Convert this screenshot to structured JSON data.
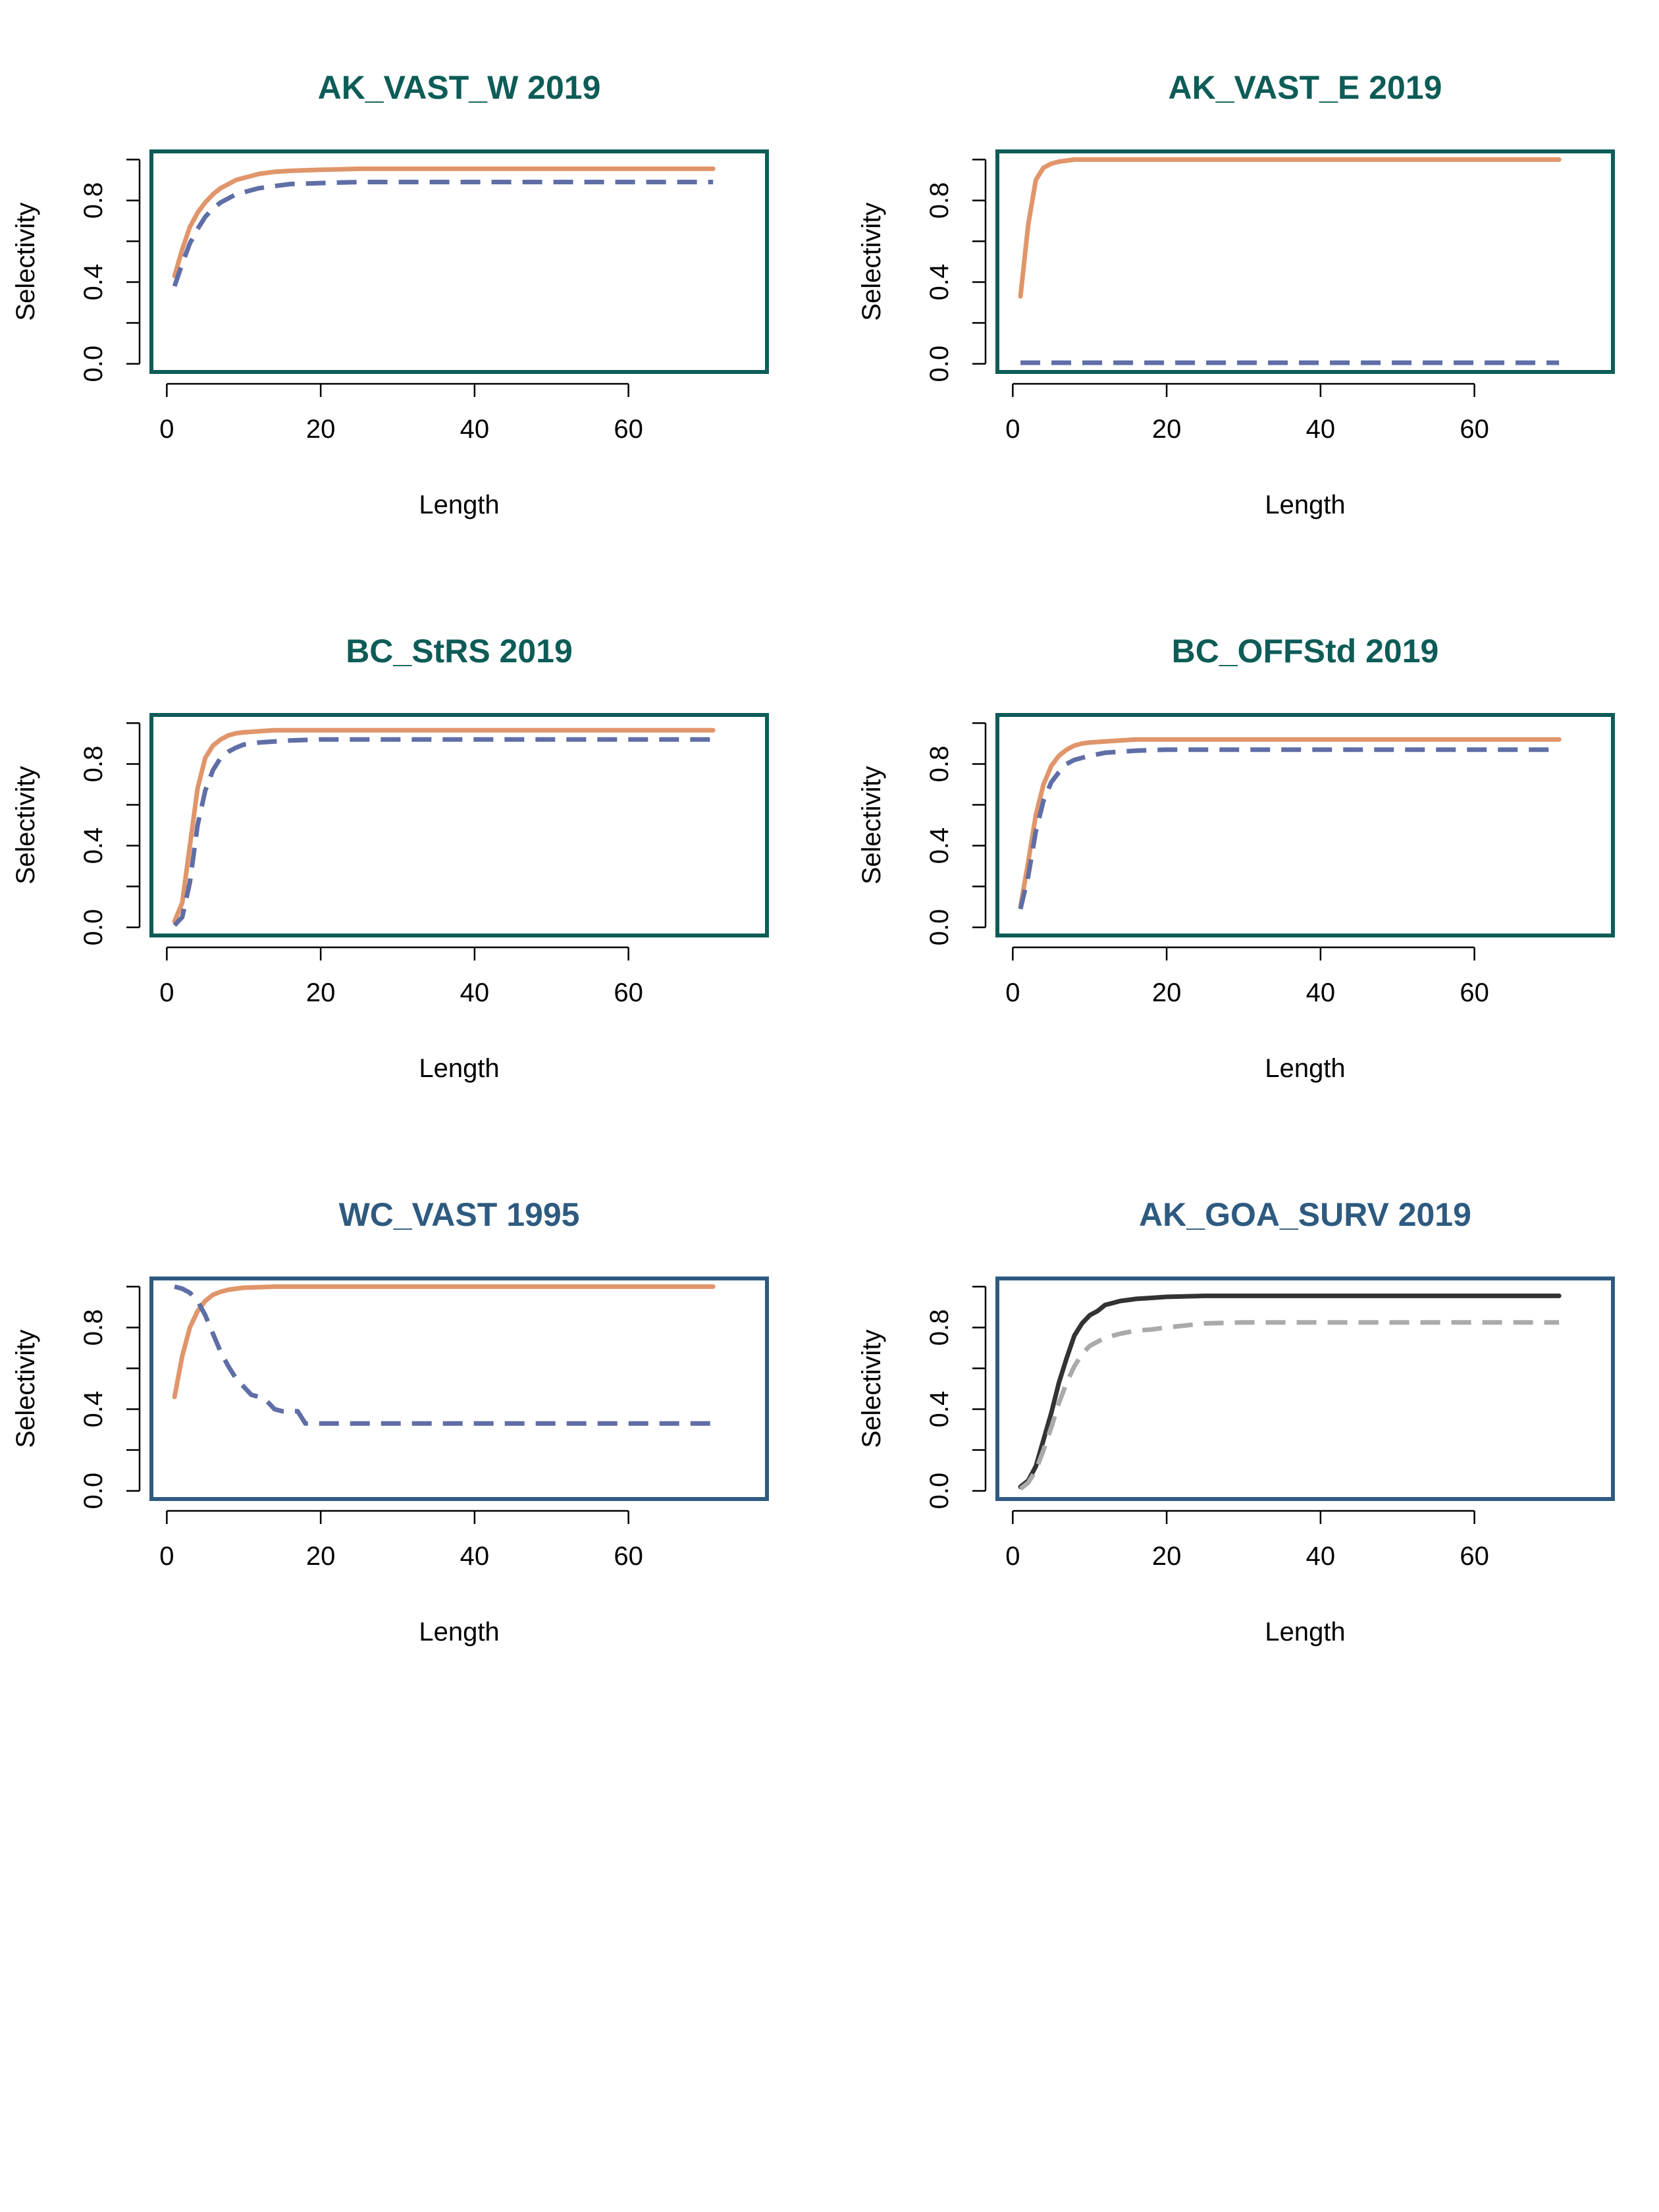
{
  "chart_data": [
    {
      "type": "line",
      "title": "AK_VAST_W 2019",
      "title_color": "#0d5c57",
      "frame_color": "#0d5c57",
      "xlabel": "Length",
      "ylabel": "Selectivity",
      "xlim": [
        -2,
        78
      ],
      "ylim": [
        -0.04,
        1.04
      ],
      "xticks": [
        0,
        20,
        40,
        60
      ],
      "yticks": [
        0.0,
        0.2,
        0.4,
        0.6,
        0.8,
        1.0
      ],
      "ytick_labels": [
        "0.0",
        "",
        "0.4",
        "",
        "0.8",
        ""
      ],
      "series": [
        {
          "color": "#e0956a",
          "style": "solid",
          "x": [
            1,
            2,
            3,
            4,
            5,
            6,
            7,
            8,
            9,
            10,
            12,
            14,
            16,
            20,
            25,
            30,
            40,
            50,
            60,
            71
          ],
          "y": [
            0.43,
            0.56,
            0.67,
            0.74,
            0.79,
            0.83,
            0.86,
            0.88,
            0.9,
            0.91,
            0.93,
            0.94,
            0.945,
            0.95,
            0.955,
            0.955,
            0.955,
            0.955,
            0.955,
            0.955
          ]
        },
        {
          "color": "#5f6ea6",
          "style": "dashed",
          "x": [
            1,
            2,
            3,
            4,
            5,
            6,
            7,
            8,
            9,
            10,
            12,
            14,
            16,
            20,
            25,
            30,
            40,
            50,
            60,
            71
          ],
          "y": [
            0.38,
            0.49,
            0.59,
            0.66,
            0.72,
            0.76,
            0.79,
            0.81,
            0.83,
            0.84,
            0.86,
            0.87,
            0.88,
            0.885,
            0.89,
            0.89,
            0.89,
            0.89,
            0.89,
            0.89
          ]
        }
      ]
    },
    {
      "type": "line",
      "title": "AK_VAST_E 2019",
      "title_color": "#0d5c57",
      "frame_color": "#0d5c57",
      "xlabel": "Length",
      "ylabel": "Selectivity",
      "xlim": [
        -2,
        78
      ],
      "ylim": [
        -0.04,
        1.04
      ],
      "xticks": [
        0,
        20,
        40,
        60
      ],
      "yticks": [
        0.0,
        0.2,
        0.4,
        0.6,
        0.8,
        1.0
      ],
      "ytick_labels": [
        "0.0",
        "",
        "0.4",
        "",
        "0.8",
        ""
      ],
      "series": [
        {
          "color": "#e0956a",
          "style": "solid",
          "x": [
            1,
            2,
            3,
            4,
            5,
            6,
            7,
            8,
            9,
            10,
            15,
            20,
            30,
            40,
            50,
            60,
            71
          ],
          "y": [
            0.33,
            0.68,
            0.9,
            0.96,
            0.98,
            0.99,
            0.995,
            1.0,
            1.0,
            1.0,
            1.0,
            1.0,
            1.0,
            1.0,
            1.0,
            1.0,
            1.0
          ]
        },
        {
          "color": "#5f6ea6",
          "style": "dashed",
          "x": [
            1,
            10,
            20,
            30,
            40,
            50,
            60,
            71
          ],
          "y": [
            0.005,
            0.005,
            0.005,
            0.005,
            0.005,
            0.005,
            0.005,
            0.005
          ]
        }
      ]
    },
    {
      "type": "line",
      "title": "BC_StRS 2019",
      "title_color": "#0d5c57",
      "frame_color": "#0d5c57",
      "xlabel": "Length",
      "ylabel": "Selectivity",
      "xlim": [
        -2,
        78
      ],
      "ylim": [
        -0.04,
        1.04
      ],
      "xticks": [
        0,
        20,
        40,
        60
      ],
      "yticks": [
        0.0,
        0.2,
        0.4,
        0.6,
        0.8,
        1.0
      ],
      "ytick_labels": [
        "0.0",
        "",
        "0.4",
        "",
        "0.8",
        ""
      ],
      "series": [
        {
          "color": "#e0956a",
          "style": "solid",
          "x": [
            1,
            2,
            3,
            4,
            5,
            6,
            7,
            8,
            9,
            10,
            12,
            14,
            16,
            20,
            30,
            40,
            50,
            60,
            71
          ],
          "y": [
            0.03,
            0.12,
            0.4,
            0.68,
            0.83,
            0.89,
            0.92,
            0.94,
            0.95,
            0.955,
            0.96,
            0.965,
            0.965,
            0.965,
            0.965,
            0.965,
            0.965,
            0.965,
            0.965
          ]
        },
        {
          "color": "#5f6ea6",
          "style": "dashed",
          "x": [
            1,
            2,
            3,
            4,
            5,
            6,
            7,
            8,
            9,
            10,
            12,
            14,
            16,
            20,
            30,
            40,
            50,
            60,
            71
          ],
          "y": [
            0.01,
            0.05,
            0.22,
            0.5,
            0.67,
            0.77,
            0.83,
            0.86,
            0.88,
            0.895,
            0.905,
            0.91,
            0.915,
            0.92,
            0.92,
            0.92,
            0.92,
            0.92,
            0.92
          ]
        }
      ]
    },
    {
      "type": "line",
      "title": "BC_OFFStd 2019",
      "title_color": "#0d5c57",
      "frame_color": "#0d5c57",
      "xlabel": "Length",
      "ylabel": "Selectivity",
      "xlim": [
        -2,
        78
      ],
      "ylim": [
        -0.04,
        1.04
      ],
      "xticks": [
        0,
        20,
        40,
        60
      ],
      "yticks": [
        0.0,
        0.2,
        0.4,
        0.6,
        0.8,
        1.0
      ],
      "ytick_labels": [
        "0.0",
        "",
        "0.4",
        "",
        "0.8",
        ""
      ],
      "series": [
        {
          "color": "#e0956a",
          "style": "solid",
          "x": [
            1,
            2,
            3,
            4,
            5,
            6,
            7,
            8,
            9,
            10,
            12,
            14,
            16,
            20,
            30,
            40,
            50,
            60,
            71
          ],
          "y": [
            0.1,
            0.32,
            0.55,
            0.7,
            0.79,
            0.84,
            0.87,
            0.89,
            0.9,
            0.905,
            0.91,
            0.915,
            0.92,
            0.92,
            0.92,
            0.92,
            0.92,
            0.92,
            0.92
          ]
        },
        {
          "color": "#5f6ea6",
          "style": "dashed",
          "x": [
            1,
            2,
            3,
            4,
            5,
            6,
            7,
            8,
            9,
            10,
            12,
            14,
            16,
            20,
            30,
            40,
            50,
            60,
            71
          ],
          "y": [
            0.09,
            0.25,
            0.47,
            0.62,
            0.71,
            0.76,
            0.8,
            0.82,
            0.83,
            0.84,
            0.855,
            0.86,
            0.865,
            0.87,
            0.87,
            0.87,
            0.87,
            0.87,
            0.87
          ]
        }
      ]
    },
    {
      "type": "line",
      "title": "WC_VAST 1995",
      "title_color": "#2e5a80",
      "frame_color": "#2e5a80",
      "xlabel": "Length",
      "ylabel": "Selectivity",
      "xlim": [
        -2,
        78
      ],
      "ylim": [
        -0.04,
        1.04
      ],
      "xticks": [
        0,
        20,
        40,
        60
      ],
      "yticks": [
        0.0,
        0.2,
        0.4,
        0.6,
        0.8,
        1.0
      ],
      "ytick_labels": [
        "0.0",
        "",
        "0.4",
        "",
        "0.8",
        ""
      ],
      "series": [
        {
          "color": "#e0956a",
          "style": "solid",
          "x": [
            1,
            2,
            3,
            4,
            5,
            6,
            7,
            8,
            9,
            10,
            12,
            14,
            16,
            20,
            30,
            40,
            50,
            60,
            71
          ],
          "y": [
            0.46,
            0.66,
            0.8,
            0.88,
            0.93,
            0.96,
            0.975,
            0.985,
            0.99,
            0.995,
            0.997,
            1.0,
            1.0,
            1.0,
            1.0,
            1.0,
            1.0,
            1.0,
            1.0
          ]
        },
        {
          "color": "#5f6ea6",
          "style": "dashed",
          "x": [
            1,
            2,
            3,
            4,
            5,
            6,
            7,
            8,
            9,
            10,
            11,
            12,
            13,
            14,
            15,
            16,
            17,
            18,
            19,
            20,
            30,
            40,
            50,
            60,
            71
          ],
          "y": [
            1.0,
            0.99,
            0.97,
            0.93,
            0.86,
            0.77,
            0.68,
            0.61,
            0.55,
            0.51,
            0.47,
            0.46,
            0.44,
            0.4,
            0.39,
            0.39,
            0.39,
            0.33,
            0.33,
            0.33,
            0.33,
            0.33,
            0.33,
            0.33,
            0.33
          ]
        }
      ]
    },
    {
      "type": "line",
      "title": "AK_GOA_SURV 2019",
      "title_color": "#2e5a80",
      "frame_color": "#2e5a80",
      "xlabel": "Length",
      "ylabel": "Selectivity",
      "xlim": [
        -2,
        78
      ],
      "ylim": [
        -0.04,
        1.04
      ],
      "xticks": [
        0,
        20,
        40,
        60
      ],
      "yticks": [
        0.0,
        0.2,
        0.4,
        0.6,
        0.8,
        1.0
      ],
      "ytick_labels": [
        "0.0",
        "",
        "0.4",
        "",
        "0.8",
        ""
      ],
      "series": [
        {
          "color": "#333333",
          "style": "solid",
          "x": [
            1,
            2,
            3,
            4,
            5,
            6,
            7,
            8,
            9,
            10,
            11,
            12,
            13,
            14,
            15,
            16,
            18,
            20,
            25,
            30,
            40,
            50,
            60,
            71
          ],
          "y": [
            0.02,
            0.05,
            0.12,
            0.25,
            0.38,
            0.53,
            0.65,
            0.76,
            0.82,
            0.86,
            0.88,
            0.91,
            0.92,
            0.93,
            0.935,
            0.94,
            0.945,
            0.95,
            0.955,
            0.955,
            0.955,
            0.955,
            0.955,
            0.955
          ]
        },
        {
          "color": "#aaaaaa",
          "style": "dashed",
          "x": [
            1,
            2,
            3,
            4,
            5,
            6,
            7,
            8,
            9,
            10,
            11,
            12,
            13,
            14,
            16,
            18,
            20,
            25,
            30,
            40,
            50,
            60,
            71
          ],
          "y": [
            0.01,
            0.04,
            0.1,
            0.2,
            0.31,
            0.43,
            0.53,
            0.61,
            0.67,
            0.71,
            0.73,
            0.75,
            0.76,
            0.77,
            0.785,
            0.79,
            0.8,
            0.82,
            0.825,
            0.825,
            0.825,
            0.825,
            0.825
          ]
        }
      ]
    }
  ]
}
